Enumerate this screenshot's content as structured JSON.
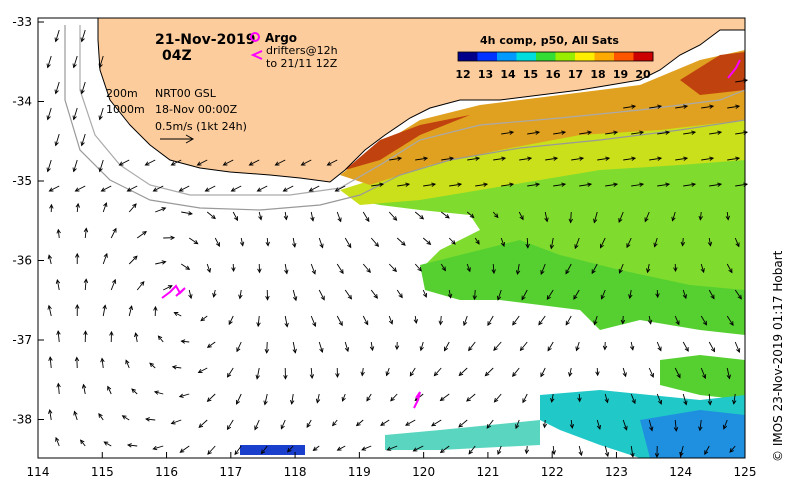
{
  "header": {
    "date": "21-Nov-2019",
    "time": "04Z"
  },
  "legend_argo": {
    "argo_label": "Argo",
    "drifters_label": "drifters@12h",
    "drifters_to": "to 21/11 12Z",
    "argo_color": "#ff00ff"
  },
  "contours": {
    "c200": "200m",
    "c1000": "1000m"
  },
  "info": {
    "product": "NRT00 GSL",
    "ref_time": "18-Nov 00:00Z",
    "scale": "0.5m/s (1kt 24h)"
  },
  "colorbar": {
    "title": "4h comp, p50, All Sats",
    "ticks": [
      "12",
      "13",
      "14",
      "15",
      "16",
      "17",
      "18",
      "19",
      "20"
    ],
    "colors": [
      "#00008b",
      "#0033ff",
      "#0099ff",
      "#00dddd",
      "#33dd33",
      "#99ee00",
      "#ffee00",
      "#ffaa00",
      "#ff5500",
      "#cc0000"
    ]
  },
  "axes": {
    "x_ticks": [
      "114",
      "115",
      "116",
      "117",
      "118",
      "119",
      "120",
      "121",
      "122",
      "123",
      "124",
      "125"
    ],
    "y_ticks": [
      "-33",
      "-34",
      "-35",
      "-36",
      "-37",
      "-38"
    ]
  },
  "credit": "© IMOS 23-Nov-2019 01:17 Hobart",
  "colors": {
    "land": "#fdcc9c",
    "coast": "#000000",
    "arrows": "#000000"
  }
}
